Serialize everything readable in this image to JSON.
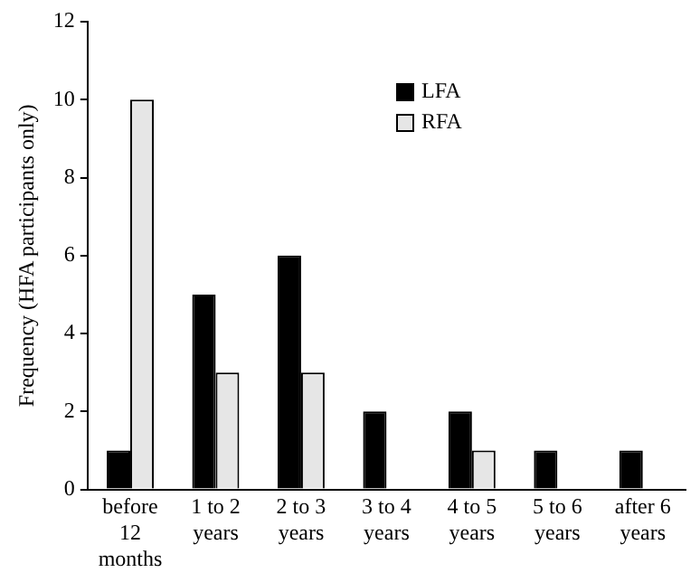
{
  "chart_data": {
    "type": "bar",
    "ylabel": "Frequency (HFA participants only)",
    "categories": [
      "before 12 months",
      "1 to 2 years",
      "2 to 3 years",
      "3 to 4 years",
      "4 to 5 years",
      "5 to 6 years",
      "after 6 years"
    ],
    "series": [
      {
        "name": "LFA",
        "color": "#000000",
        "values": [
          1,
          5,
          6,
          2,
          2,
          1,
          1
        ]
      },
      {
        "name": "RFA",
        "color": "#e6e6e6",
        "values": [
          10,
          3,
          3,
          0,
          1,
          0,
          0
        ]
      }
    ],
    "ylim": [
      0,
      12
    ],
    "yticks": [
      0,
      2,
      4,
      6,
      8,
      10,
      12
    ],
    "grid": false,
    "legend": "top right"
  }
}
